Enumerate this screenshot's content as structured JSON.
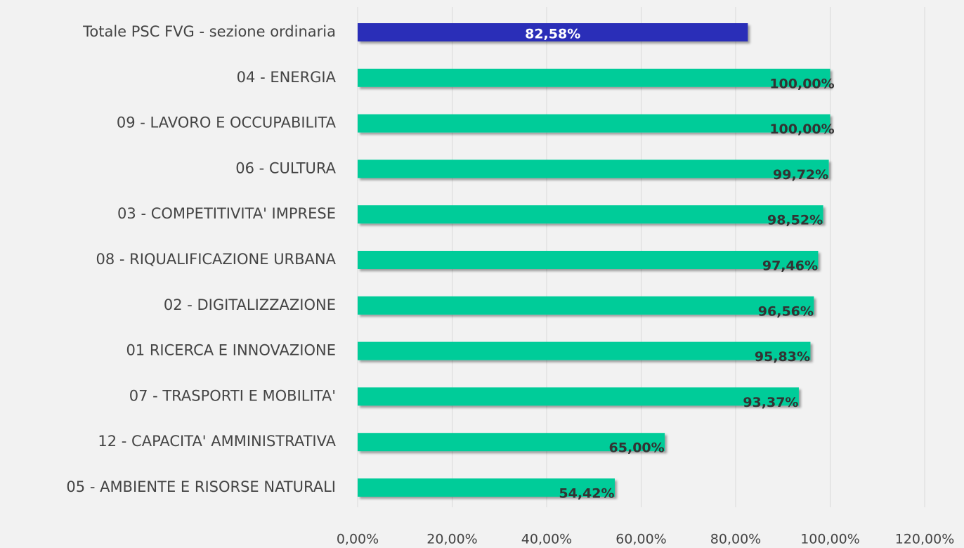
{
  "chart_data": {
    "type": "hbar",
    "categories": [
      "Totale PSC FVG - sezione ordinaria",
      "04 - ENERGIA",
      "09 - LAVORO E OCCUPABILITA",
      "06 - CULTURA",
      "03 - COMPETITIVITA' IMPRESE",
      "08 - RIQUALIFICAZIONE URBANA",
      "02 - DIGITALIZZAZIONE",
      "01 RICERCA E INNOVAZIONE",
      "07 - TRASPORTI E MOBILITA'",
      "12 - CAPACITA' AMMINISTRATIVA",
      "05 - AMBIENTE E RISORSE NATURALI"
    ],
    "values": [
      82.58,
      100,
      100,
      99.72,
      98.52,
      97.46,
      96.56,
      95.83,
      93.37,
      65,
      54.42
    ],
    "value_labels": [
      "82,58%",
      "100,00%",
      "100,00%",
      "99,72%",
      "98,52%",
      "97,46%",
      "96,56%",
      "95,83%",
      "93,37%",
      "65,00%",
      "54,42%"
    ],
    "colors": [
      "#2b2db8",
      "#00cc99",
      "#00cc99",
      "#00cc99",
      "#00cc99",
      "#00cc99",
      "#00cc99",
      "#00cc99",
      "#00cc99",
      "#00cc99",
      "#00cc99"
    ],
    "xlim": [
      0,
      120
    ],
    "xticks": [
      {
        "value": 0,
        "label": "0,00%"
      },
      {
        "value": 20,
        "label": "20,00%"
      },
      {
        "value": 40,
        "label": "40,00%"
      },
      {
        "value": 60,
        "label": "60,00%"
      },
      {
        "value": 80,
        "label": "80,00%"
      },
      {
        "value": 100,
        "label": "100,00%"
      },
      {
        "value": 120,
        "label": "120,00%"
      }
    ],
    "grid": true
  }
}
